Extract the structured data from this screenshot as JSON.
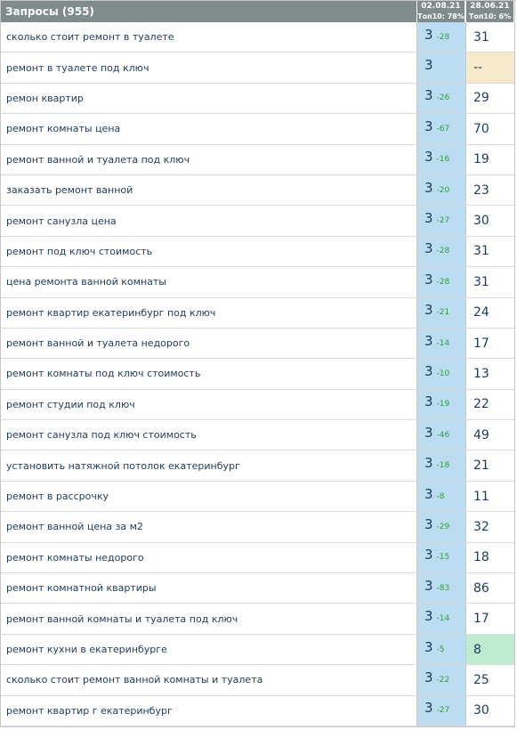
{
  "header": {
    "title": "Запросы (955)",
    "columns": [
      {
        "date": "02.08.21",
        "top": "Топ10: 78%"
      },
      {
        "date": "28.06.21",
        "top": "Топ10: 6%"
      }
    ]
  },
  "table": {
    "rows": [
      {
        "query": "сколько стоит ремонт в туалете",
        "position": 3,
        "change": -28,
        "previous": 31
      },
      {
        "query": "ремонт в туалете под ключ",
        "position": 3,
        "previous": "--",
        "highlight": "#f8e9cc"
      },
      {
        "query": "ремон квартир",
        "position": 3,
        "change": -26,
        "previous": 29
      },
      {
        "query": "ремонт комнаты цена",
        "position": 3,
        "change": -67,
        "previous": 70
      },
      {
        "query": "ремонт ванной и туалета под ключ",
        "position": 3,
        "change": -16,
        "previous": 19
      },
      {
        "query": "заказать ремонт ванной",
        "position": 3,
        "change": -20,
        "previous": 23
      },
      {
        "query": "ремонт санузла цена",
        "position": 3,
        "change": -27,
        "previous": 30
      },
      {
        "query": "ремонт под ключ стоимость",
        "position": 3,
        "change": -28,
        "previous": 31
      },
      {
        "query": "цена ремонта ванной комнаты",
        "position": 3,
        "change": -28,
        "previous": 31
      },
      {
        "query": "ремонт квартир екатеринбург под ключ",
        "position": 3,
        "change": -21,
        "previous": 24
      },
      {
        "query": "ремонт ванной и туалета недорого",
        "position": 3,
        "change": -14,
        "previous": 17
      },
      {
        "query": "ремонт комнаты под ключ стоимость",
        "position": 3,
        "change": -10,
        "previous": 13
      },
      {
        "query": "ремонт студии под ключ",
        "position": 3,
        "change": -19,
        "previous": 22
      },
      {
        "query": "ремонт санузла под ключ стоимость",
        "position": 3,
        "change": -46,
        "previous": 49
      },
      {
        "query": "установить натяжной потолок екатеринбург",
        "position": 3,
        "change": -18,
        "previous": 21
      },
      {
        "query": "ремонт в рассрочку",
        "position": 3,
        "change": -8,
        "previous": 11
      },
      {
        "query": "ремонт ванной цена за м2",
        "position": 3,
        "change": -29,
        "previous": 32
      },
      {
        "query": "ремонт комнаты недорого",
        "position": 3,
        "change": -15,
        "previous": 18
      },
      {
        "query": "ремонт комнатной квартиры",
        "position": 3,
        "change": -83,
        "previous": 86
      },
      {
        "query": "ремонт ванной комнаты и туалета под ключ",
        "position": 3,
        "change": -14,
        "previous": 17
      },
      {
        "query": "ремонт кухни в екатеринбурге",
        "position": 3,
        "change": -5,
        "previous": 8,
        "highlight": "#bdecd1"
      },
      {
        "query": "сколько стоит ремонт ванной комнаты и туалета",
        "position": 3,
        "change": -22,
        "previous": 25
      },
      {
        "query": "ремонт квартир г екатеринбург",
        "position": 3,
        "change": -27,
        "previous": 30
      }
    ]
  }
}
